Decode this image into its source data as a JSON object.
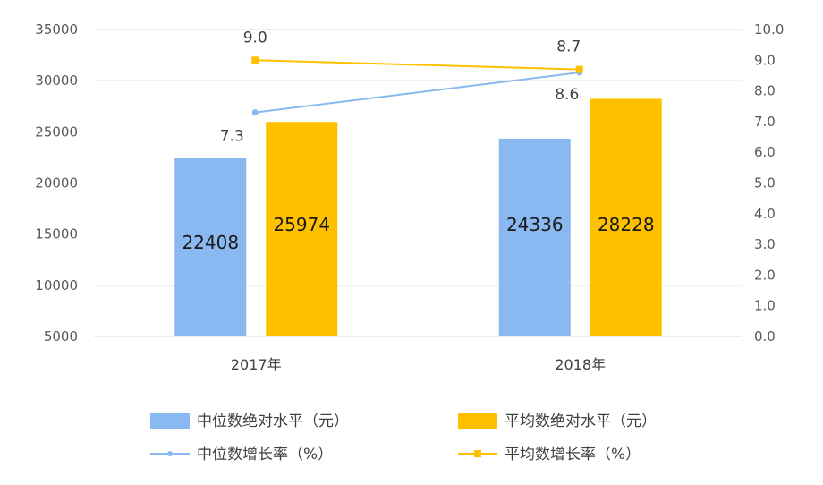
{
  "chart_data": {
    "type": "bar",
    "categories": [
      "2017年",
      "2018年"
    ],
    "series": [
      {
        "name": "中位数绝对水平（元）",
        "kind": "bar",
        "axis": "left",
        "color": "#8AB8F0",
        "values": [
          22408,
          24336
        ],
        "labels": [
          "22408",
          "24336"
        ]
      },
      {
        "name": "平均数绝对水平（元）",
        "kind": "bar",
        "axis": "left",
        "color": "#FFC000",
        "values": [
          25974,
          28228
        ],
        "labels": [
          "25974",
          "28228"
        ]
      },
      {
        "name": "中位数增长率（%）",
        "kind": "line",
        "axis": "right",
        "color": "#8AB8F0",
        "values": [
          7.3,
          8.6
        ],
        "labels": [
          "7.3",
          "8.6"
        ]
      },
      {
        "name": "平均数增长率（%）",
        "kind": "line",
        "axis": "right",
        "color": "#FFC000",
        "values": [
          9.0,
          8.7
        ],
        "labels": [
          "9.0",
          "8.7"
        ]
      }
    ],
    "y_left": {
      "min": 5000,
      "max": 35000,
      "ticks": [
        "5000",
        "10000",
        "15000",
        "20000",
        "25000",
        "30000",
        "35000"
      ]
    },
    "y_right": {
      "min": 0,
      "max": 10,
      "ticks": [
        "0.0",
        "1.0",
        "2.0",
        "3.0",
        "4.0",
        "5.0",
        "6.0",
        "7.0",
        "8.0",
        "9.0",
        "10.0"
      ]
    },
    "grid": true,
    "legend": "bottom"
  }
}
